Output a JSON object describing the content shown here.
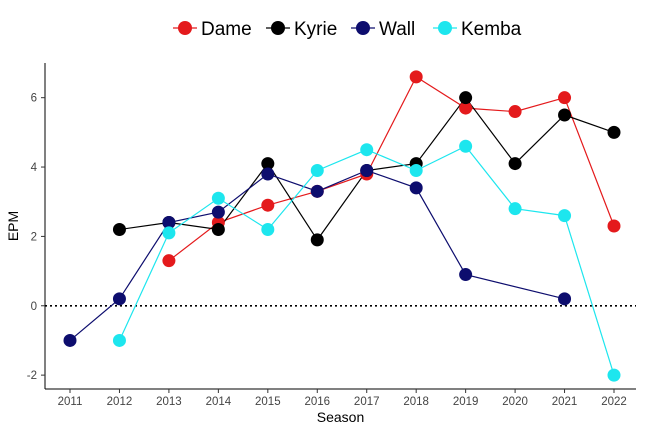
{
  "chart_data": {
    "type": "line",
    "title": "",
    "xlabel": "Season",
    "ylabel": "EPM",
    "x": [
      2011,
      2012,
      2013,
      2014,
      2015,
      2016,
      2017,
      2018,
      2019,
      2020,
      2021,
      2022
    ],
    "xlim": [
      2011,
      2022
    ],
    "ylim": [
      -2.4,
      7
    ],
    "yticks": [
      -2,
      0,
      2,
      4,
      6
    ],
    "reference_line": {
      "y": 0,
      "style": "dotted"
    },
    "legend_position": "top",
    "grid": false,
    "series": [
      {
        "name": "Dame",
        "color": "#e41a1c",
        "x": [
          2013,
          2014,
          2015,
          2016,
          2017,
          2018,
          2019,
          2020,
          2021,
          2022
        ],
        "y": [
          1.3,
          2.4,
          2.9,
          3.3,
          3.8,
          6.6,
          5.7,
          5.6,
          6.0,
          2.3
        ]
      },
      {
        "name": "Kyrie",
        "color": "#000000",
        "x": [
          2012,
          2013,
          2014,
          2015,
          2016,
          2017,
          2018,
          2019,
          2020,
          2021,
          2022
        ],
        "y": [
          2.2,
          2.4,
          2.2,
          4.1,
          1.9,
          3.9,
          4.1,
          6.0,
          4.1,
          5.5,
          5.0
        ]
      },
      {
        "name": "Wall",
        "color": "#0d0d6e",
        "x": [
          2011,
          2012,
          2013,
          2014,
          2015,
          2016,
          2017,
          2018,
          2019,
          2021
        ],
        "y": [
          -1.0,
          0.2,
          2.4,
          2.7,
          3.8,
          3.3,
          3.9,
          3.4,
          0.9,
          0.2
        ]
      },
      {
        "name": "Kemba",
        "color": "#1de6ee",
        "x": [
          2012,
          2013,
          2014,
          2015,
          2016,
          2017,
          2018,
          2019,
          2020,
          2021,
          2022
        ],
        "y": [
          -1.0,
          2.1,
          3.1,
          2.2,
          3.9,
          4.5,
          3.9,
          4.6,
          2.8,
          2.6,
          -2.0
        ]
      }
    ]
  }
}
